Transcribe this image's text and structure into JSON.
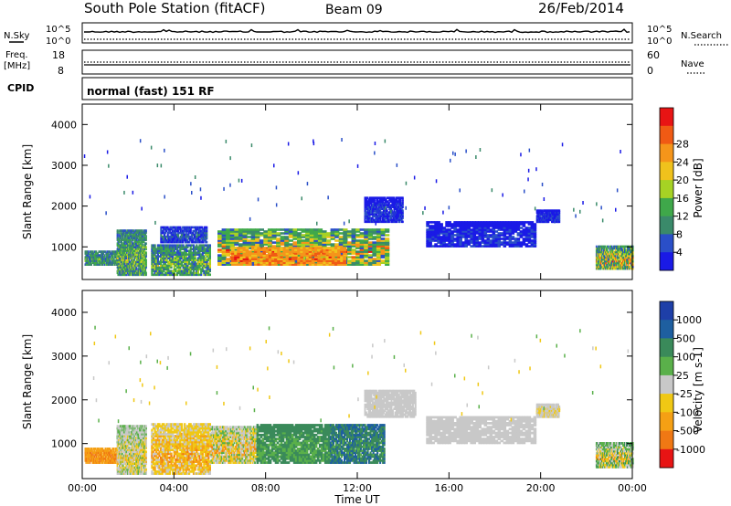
{
  "header": {
    "station": "South Pole Station (fitACF)",
    "beam": "Beam 09",
    "date": "26/Feb/2014"
  },
  "strip_labels": {
    "nsky": "N.Sky",
    "nsearch": "N.Search",
    "freq_top": "Freq.",
    "freq_unit": "[MHz]",
    "nave": "Nave",
    "cpid": "CPID",
    "cpid_value": "normal (fast) 151 RF"
  },
  "strip_ticks": {
    "noise_left": [
      "10^5",
      "10^0"
    ],
    "noise_right": [
      "10^5",
      "10^0"
    ],
    "freq_left": [
      "18",
      "8"
    ],
    "nave_right": [
      "60",
      "0"
    ]
  },
  "chart_data": [
    {
      "type": "heatmap",
      "name": "power",
      "ylabel": "Slant Range [km]",
      "ylim": [
        200,
        4500
      ],
      "yticks": [
        "1000",
        "2000",
        "3000",
        "4000"
      ],
      "colorbar": {
        "label": "Power [dB]",
        "ticks": [
          "4",
          "8",
          "12",
          "16",
          "20",
          "24",
          "28"
        ],
        "colors": [
          "#1a1ae6",
          "#2a4fc8",
          "#3a8a6a",
          "#3fa84a",
          "#a6d224",
          "#f0c21c",
          "#f5951a",
          "#f05a14",
          "#e81414"
        ]
      },
      "blobs": [
        {
          "t0": 0.1,
          "t1": 1.5,
          "r0": 550,
          "r1": 900,
          "level": [
            1,
            4
          ]
        },
        {
          "t0": 1.5,
          "t1": 2.8,
          "r0": 300,
          "r1": 1400,
          "level": [
            1,
            5
          ]
        },
        {
          "t0": 3.0,
          "t1": 5.6,
          "r0": 300,
          "r1": 1050,
          "level": [
            1,
            5
          ]
        },
        {
          "t0": 3.4,
          "t1": 5.4,
          "r0": 1100,
          "r1": 1500,
          "level": [
            0,
            2
          ]
        },
        {
          "t0": 5.9,
          "t1": 13.2,
          "r0": 550,
          "r1": 1450,
          "level": [
            1,
            8
          ]
        },
        {
          "t0": 6.5,
          "t1": 11.5,
          "r0": 550,
          "r1": 1000,
          "level": [
            5,
            8
          ]
        },
        {
          "t0": 12.3,
          "t1": 14.0,
          "r0": 1600,
          "r1": 2200,
          "level": [
            0,
            1
          ]
        },
        {
          "t0": 15.0,
          "t1": 19.8,
          "r0": 1000,
          "r1": 1600,
          "level": [
            0,
            1
          ]
        },
        {
          "t0": 19.8,
          "t1": 20.8,
          "r0": 1600,
          "r1": 1900,
          "level": [
            0,
            1
          ]
        },
        {
          "t0": 22.4,
          "t1": 24.0,
          "r0": 450,
          "r1": 1000,
          "level": [
            1,
            8
          ]
        }
      ]
    },
    {
      "type": "heatmap",
      "name": "velocity",
      "xlabel": "Time UT",
      "ylabel": "Slant Range [km]",
      "ylim": [
        200,
        4500
      ],
      "yticks": [
        "1000",
        "2000",
        "3000",
        "4000"
      ],
      "xticks": [
        "00:00",
        "04:00",
        "08:00",
        "12:00",
        "16:00",
        "20:00",
        "00:00"
      ],
      "colorbar": {
        "label": "Velocity [m s-1]",
        "ticks": [
          "1000",
          "500",
          "100",
          "25",
          "-25",
          "-100",
          "-500",
          "-1000"
        ],
        "colors": [
          "#1e3fa8",
          "#1e5fa0",
          "#3a8a5a",
          "#5ab04a",
          "#c8c8c8",
          "#f0c814",
          "#f5a014",
          "#f07814",
          "#e81414"
        ]
      },
      "blobs": [
        {
          "t0": 0.1,
          "t1": 1.5,
          "r0": 550,
          "r1": 900,
          "level": [
            6,
            7
          ]
        },
        {
          "t0": 1.5,
          "t1": 2.8,
          "r0": 300,
          "r1": 1400,
          "level": [
            3,
            6
          ]
        },
        {
          "t0": 3.0,
          "t1": 5.6,
          "r0": 300,
          "r1": 1450,
          "level": [
            4,
            7
          ]
        },
        {
          "t0": 5.6,
          "t1": 7.6,
          "r0": 550,
          "r1": 1400,
          "level": [
            3,
            7
          ]
        },
        {
          "t0": 7.6,
          "t1": 10.8,
          "r0": 550,
          "r1": 1450,
          "level": [
            2,
            3
          ]
        },
        {
          "t0": 10.8,
          "t1": 13.2,
          "r0": 550,
          "r1": 1450,
          "level": [
            1,
            3
          ]
        },
        {
          "t0": 12.3,
          "t1": 14.5,
          "r0": 1600,
          "r1": 2200,
          "level": [
            4,
            4
          ]
        },
        {
          "t0": 15.0,
          "t1": 19.8,
          "r0": 1000,
          "r1": 1600,
          "level": [
            4,
            4
          ]
        },
        {
          "t0": 19.8,
          "t1": 20.8,
          "r0": 1600,
          "r1": 1900,
          "level": [
            4,
            5
          ]
        },
        {
          "t0": 22.4,
          "t1": 24.0,
          "r0": 450,
          "r1": 1000,
          "level": [
            2,
            7
          ]
        }
      ]
    }
  ]
}
